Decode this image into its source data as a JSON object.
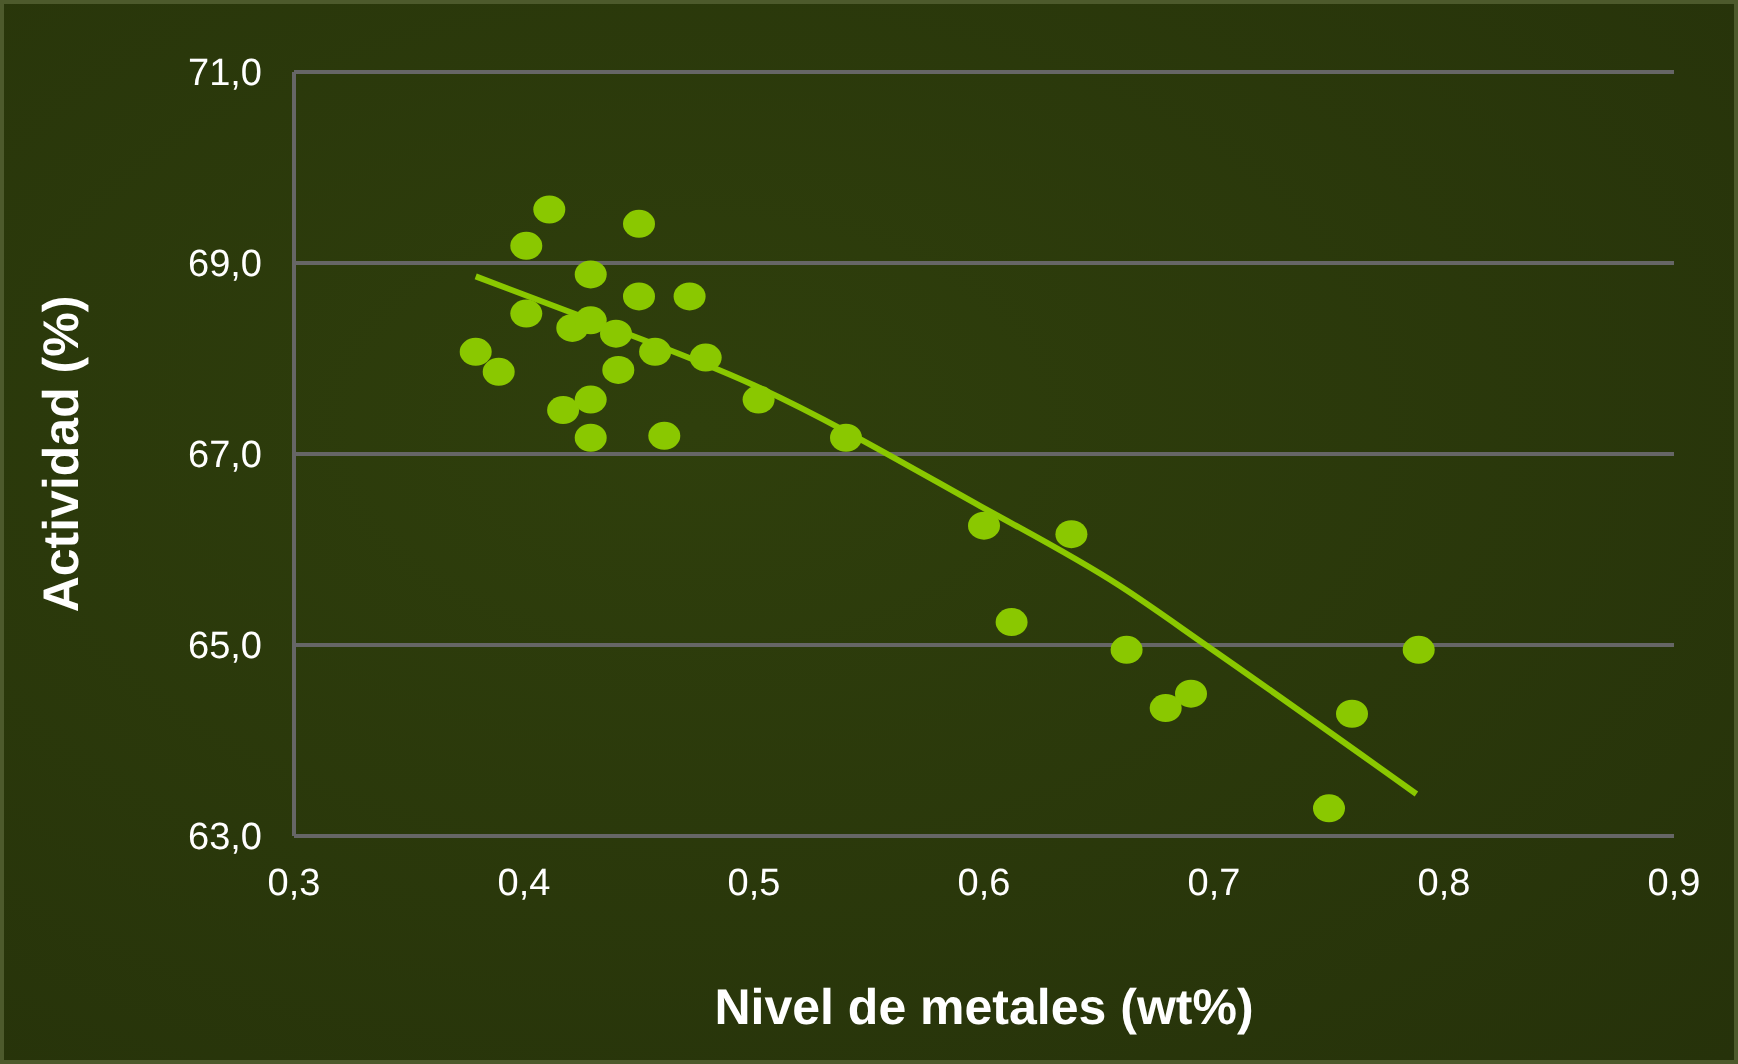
{
  "chart_data": {
    "type": "scatter",
    "xlabel": "Nivel de metales (wt%)",
    "ylabel": "Actividad  (%)",
    "xlim": [
      0.3,
      0.9
    ],
    "xticks": [
      {
        "value": 0.3,
        "label": "0,3"
      },
      {
        "value": 0.4,
        "label": "0,4"
      },
      {
        "value": 0.5,
        "label": "0,5"
      },
      {
        "value": 0.6,
        "label": "0,6"
      },
      {
        "value": 0.7,
        "label": "0,7"
      },
      {
        "value": 0.8,
        "label": "0,8"
      },
      {
        "value": 0.9,
        "label": "0,9"
      }
    ],
    "ylim": [
      63,
      71
    ],
    "yticks": [
      {
        "value": 63,
        "label": "63,0"
      },
      {
        "value": 65,
        "label": "65,0"
      },
      {
        "value": 67,
        "label": "67,0"
      },
      {
        "value": 69,
        "label": "69,0"
      },
      {
        "value": 71,
        "label": "71,0"
      }
    ],
    "grid": "y",
    "series": [
      {
        "marker": "circle",
        "color": "#8ac800",
        "x": [
          0.379,
          0.389,
          0.401,
          0.411,
          0.401,
          0.417,
          0.421,
          0.429,
          0.429,
          0.429,
          0.429,
          0.44,
          0.441,
          0.45,
          0.45,
          0.457,
          0.461,
          0.472,
          0.479,
          0.502,
          0.54,
          0.6,
          0.612,
          0.638,
          0.662,
          0.679,
          0.69,
          0.75,
          0.76,
          0.789
        ],
        "values": [
          68.07,
          67.86,
          69.18,
          69.56,
          68.47,
          67.46,
          68.32,
          68.88,
          68.4,
          67.57,
          67.17,
          68.26,
          67.88,
          69.41,
          68.65,
          68.07,
          67.19,
          68.65,
          68.01,
          67.57,
          67.17,
          66.25,
          65.24,
          66.16,
          64.95,
          64.34,
          64.49,
          63.29,
          64.28,
          64.95
        ]
      },
      {
        "type": "line",
        "color": "#8ac800",
        "x": [
          0.379,
          0.424,
          0.5,
          0.598,
          0.659,
          0.697,
          0.788
        ],
        "values": [
          68.86,
          68.45,
          67.72,
          66.46,
          65.62,
          64.99,
          63.44
        ]
      }
    ]
  }
}
